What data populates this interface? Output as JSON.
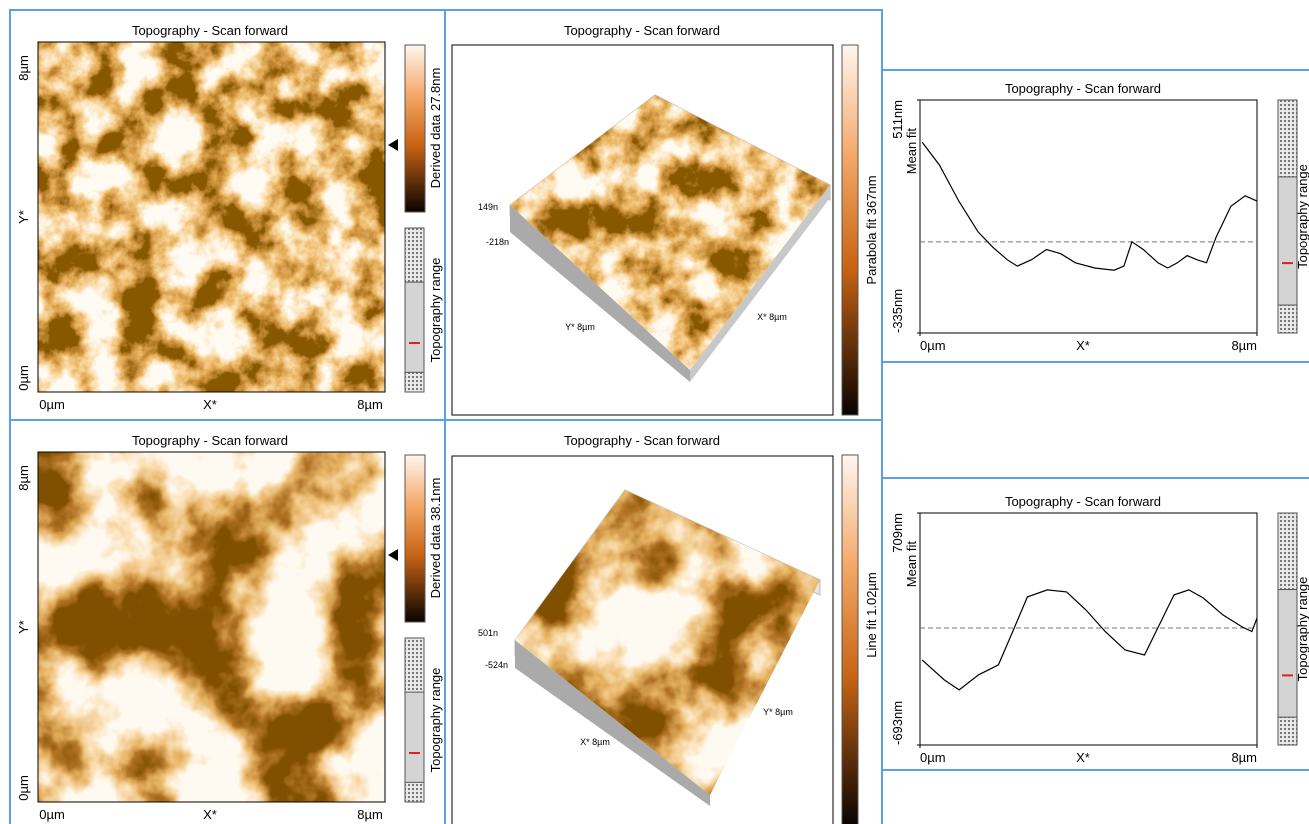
{
  "panels": [
    {
      "title": "Topography - Scan forward",
      "x_start": "0µm",
      "x_label": "X*",
      "x_end": "8µm",
      "y_start": "0µm",
      "y_label": "Y*",
      "y_end": "8µm",
      "colorbar_label": "Derived data 27.8nm",
      "range_label": "Topography range"
    },
    {
      "title": "Topography - Scan forward",
      "z_max": "149n",
      "z_min": "-218n",
      "y_axis": "Y* 8µm",
      "x_axis": "X* 8µm",
      "colorbar_label": "Parabola fit 367nm"
    },
    {
      "title": "Topography - Scan forward",
      "type": "line",
      "y_label": "Mean fit",
      "x_label": "X*",
      "range_label": "Topography range",
      "xlim": [
        0,
        8
      ],
      "xticks": [
        {
          "value": 0,
          "label": "0µm"
        },
        {
          "value": 8,
          "label": "8µm"
        }
      ],
      "ylim": [
        -335,
        511
      ],
      "yticks": [
        {
          "value": -335,
          "label": "-335nm"
        },
        {
          "value": 511,
          "label": "511nm"
        }
      ],
      "x": [
        0.05,
        0.46,
        0.92,
        1.38,
        1.73,
        2.07,
        2.31,
        2.65,
        3.0,
        3.34,
        3.69,
        4.15,
        4.61,
        4.84,
        5.03,
        5.3,
        5.65,
        5.88,
        6.11,
        6.34,
        6.57,
        6.8,
        7.03,
        7.38,
        7.72,
        8.0
      ],
      "values": [
        358,
        275,
        144,
        32,
        -24,
        -69,
        -92,
        -69,
        -32,
        -47,
        -80,
        -99,
        -107,
        -92,
        -4,
        -32,
        -80,
        -99,
        -80,
        -54,
        -69,
        -80,
        13,
        125,
        163,
        144
      ],
      "mean": -4
    },
    {
      "title": "Topography - Scan forward",
      "z_max": "501n",
      "z_min": "-524n",
      "y_axis": "Y* 8µm",
      "x_axis": "X* 8µm",
      "colorbar_label": "Line fit 1.02µm"
    },
    {
      "title": "Topography - Scan forward",
      "x_start": "0µm",
      "x_label": "X*",
      "x_end": "8µm",
      "y_start": "0µm",
      "y_label": "Y*",
      "y_end": "8µm",
      "colorbar_label": "Derived data 38.1nm",
      "range_label": "Topography range"
    },
    {
      "title": "Topography - Scan forward",
      "type": "line",
      "y_label": "Mean fit",
      "x_label": "X*",
      "range_label": "Topography range",
      "xlim": [
        0,
        8
      ],
      "xticks": [
        {
          "value": 0,
          "label": "0µm"
        },
        {
          "value": 8,
          "label": "8µm"
        }
      ],
      "ylim": [
        -693,
        709
      ],
      "yticks": [
        {
          "value": -693,
          "label": "-693nm"
        },
        {
          "value": 709,
          "label": "709nm"
        }
      ],
      "x": [
        0.05,
        0.58,
        0.93,
        1.39,
        1.86,
        2.2,
        2.55,
        3.02,
        3.48,
        3.94,
        4.4,
        4.87,
        5.33,
        5.68,
        6.03,
        6.38,
        6.72,
        7.19,
        7.65,
        7.88,
        8.0
      ],
      "values": [
        -179,
        -300,
        -360,
        -269,
        -209,
        -8,
        202,
        244,
        232,
        123,
        -8,
        -118,
        -149,
        33,
        214,
        244,
        196,
        93,
        20,
        -8,
        75
      ],
      "mean": 14
    }
  ]
}
